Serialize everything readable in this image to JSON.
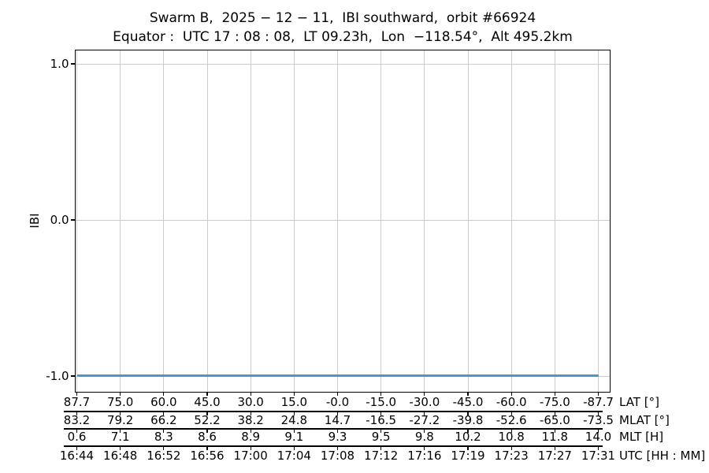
{
  "chart_data": {
    "type": "line",
    "title": "Swarm B,  2025 − 12 − 11,  IBI southward,  orbit #66924",
    "subtitle": "Equator :  UTC 17 : 08 : 08,  LT 09.23h,  Lon  −118.54°,  Alt 495.2km",
    "ylabel": "IBI",
    "ylim": [
      -1.1,
      1.1
    ],
    "yticks": [
      "1.0",
      "0.0",
      "-1.0"
    ],
    "grid": true,
    "series": [
      {
        "name": "IBI",
        "description": "constant value across entire orbit segment",
        "y_value": -1.0,
        "x_span_utc": [
          "16:44",
          "17:31"
        ],
        "color": "#4e95c8"
      }
    ],
    "x_axes": [
      {
        "label": "LAT [°]",
        "ticks": [
          "87.7",
          "75.0",
          "60.0",
          "45.0",
          "30.0",
          "15.0",
          "-0.0",
          "-15.0",
          "-30.0",
          "-45.0",
          "-60.0",
          "-75.0",
          "-87.7"
        ]
      },
      {
        "label": "MLAT [°]",
        "ticks": [
          "83.2",
          "79.2",
          "66.2",
          "52.2",
          "38.2",
          "24.8",
          "14.7",
          "-16.5",
          "-27.2",
          "-39.8",
          "-52.6",
          "-65.0",
          "-73.5"
        ]
      },
      {
        "label": "MLT [H]",
        "ticks": [
          "0.6",
          "7.1",
          "8.3",
          "8.6",
          "8.9",
          "9.1",
          "9.3",
          "9.5",
          "9.8",
          "10.2",
          "10.8",
          "11.8",
          "14.0"
        ]
      },
      {
        "label": "UTC [HH : MM]",
        "ticks": [
          "16:44",
          "16:48",
          "16:52",
          "16:56",
          "17:00",
          "17:04",
          "17:08",
          "17:12",
          "17:16",
          "17:19",
          "17:23",
          "17:27",
          "17:31"
        ]
      }
    ],
    "colors": {
      "line": "#4e95c8",
      "grid": "#cbcbcb",
      "spine": "#000000",
      "text": "#000000",
      "background": "#ffffff"
    }
  }
}
